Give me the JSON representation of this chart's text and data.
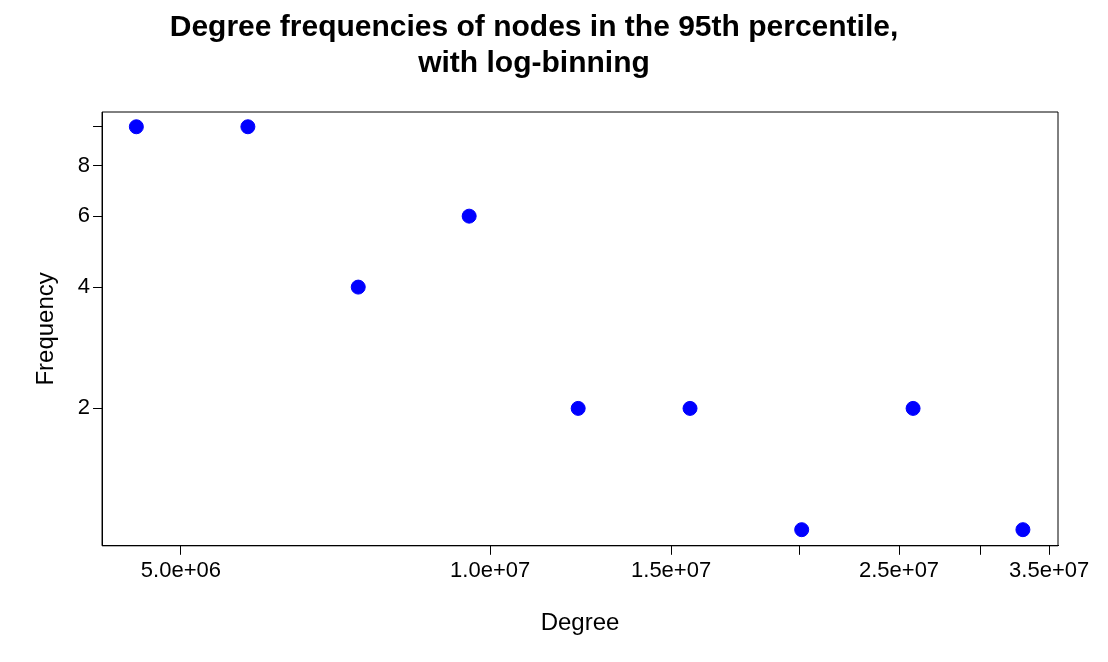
{
  "chart_data": {
    "type": "scatter",
    "title": "Degree frequencies of nodes in the 95th percentile,\nwith log-binning",
    "xlabel": "Degree",
    "ylabel": "Frequency",
    "log": "xy",
    "marker": "circle",
    "color": "#0000ff",
    "x": [
      4525000,
      5810000,
      7440000,
      9540000,
      12180000,
      15650000,
      20100000,
      25800000,
      33000000
    ],
    "values": [
      10,
      10,
      4,
      6,
      2,
      2,
      1,
      2,
      1
    ],
    "xlim": [
      4190000,
      35700000
    ],
    "ylim": [
      0.912,
      10.88
    ],
    "xticks": [
      {
        "value": 5000000,
        "label": "5.0e+06"
      },
      {
        "value": 10000000,
        "label": "1.0e+07"
      },
      {
        "value": 15000000,
        "label": "1.5e+07"
      },
      {
        "value": 20000000,
        "label": null
      },
      {
        "value": 25000000,
        "label": "2.5e+07"
      },
      {
        "value": 30000000,
        "label": null
      },
      {
        "value": 35000000,
        "label": "3.5e+07"
      }
    ],
    "yticks": [
      2,
      4,
      6,
      8,
      {
        "value": 10,
        "label": null
      }
    ]
  }
}
